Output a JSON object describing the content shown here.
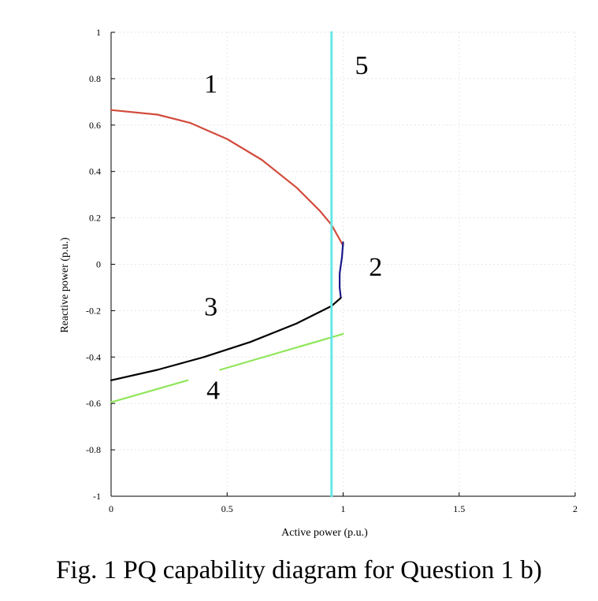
{
  "caption": "Fig. 1 PQ capability diagram for Question 1 b)",
  "chart_data": {
    "type": "line",
    "xlabel": "Active power (p.u.)",
    "ylabel": "Reactive power (p.u.)",
    "xlim": [
      0,
      2
    ],
    "ylim": [
      -1,
      1
    ],
    "x_ticks": [
      0,
      0.5,
      1,
      1.5,
      2
    ],
    "x_tick_labels": [
      "0",
      "0.5",
      "1",
      "1.5",
      "2"
    ],
    "y_ticks": [
      1,
      0.8,
      0.6,
      0.4,
      0.2,
      0,
      -0.2,
      -0.4,
      -0.6,
      -0.8,
      -1
    ],
    "y_tick_labels": [
      "1",
      "0.8",
      "0.6",
      "0.4",
      "0.2",
      "0",
      "-0.2",
      "-0.4",
      "-0.6",
      "-0.8",
      "-1"
    ],
    "grid": true,
    "series": [
      {
        "color": "#d24b3c",
        "x": [
          0,
          0.2,
          0.34,
          0.5,
          0.65,
          0.8,
          0.9,
          0.95,
          1.0
        ],
        "y": [
          0.665,
          0.645,
          0.61,
          0.54,
          0.45,
          0.33,
          0.23,
          0.17,
          0.08
        ]
      },
      {
        "color": "#1a1a8c",
        "x": [
          1.0,
          0.995,
          0.985,
          0.985,
          0.99
        ],
        "y": [
          0.095,
          0.03,
          -0.04,
          -0.1,
          -0.145
        ]
      },
      {
        "color": "#000000",
        "x": [
          0,
          0.2,
          0.4,
          0.6,
          0.8,
          0.95,
          0.99
        ],
        "y": [
          -0.5,
          -0.455,
          -0.4,
          -0.335,
          -0.255,
          -0.18,
          -0.145
        ]
      },
      {
        "color": "#8fe65a",
        "x": [
          0,
          0.33
        ],
        "y": [
          -0.595,
          -0.5
        ]
      },
      {
        "color": "#8fe65a",
        "x": [
          0.47,
          1.0
        ],
        "y": [
          -0.455,
          -0.3
        ]
      },
      {
        "color": "#66e6e6",
        "x": [
          0.95,
          0.95
        ],
        "y": [
          1,
          -1
        ]
      }
    ],
    "annotations": [
      {
        "text": "1",
        "x": 0.43,
        "y": 0.74
      },
      {
        "text": "2",
        "x": 1.14,
        "y": -0.05
      },
      {
        "text": "3",
        "x": 0.43,
        "y": -0.22
      },
      {
        "text": "4",
        "x": 0.44,
        "y": -0.58
      },
      {
        "text": "5",
        "x": 1.08,
        "y": 0.82
      }
    ]
  }
}
